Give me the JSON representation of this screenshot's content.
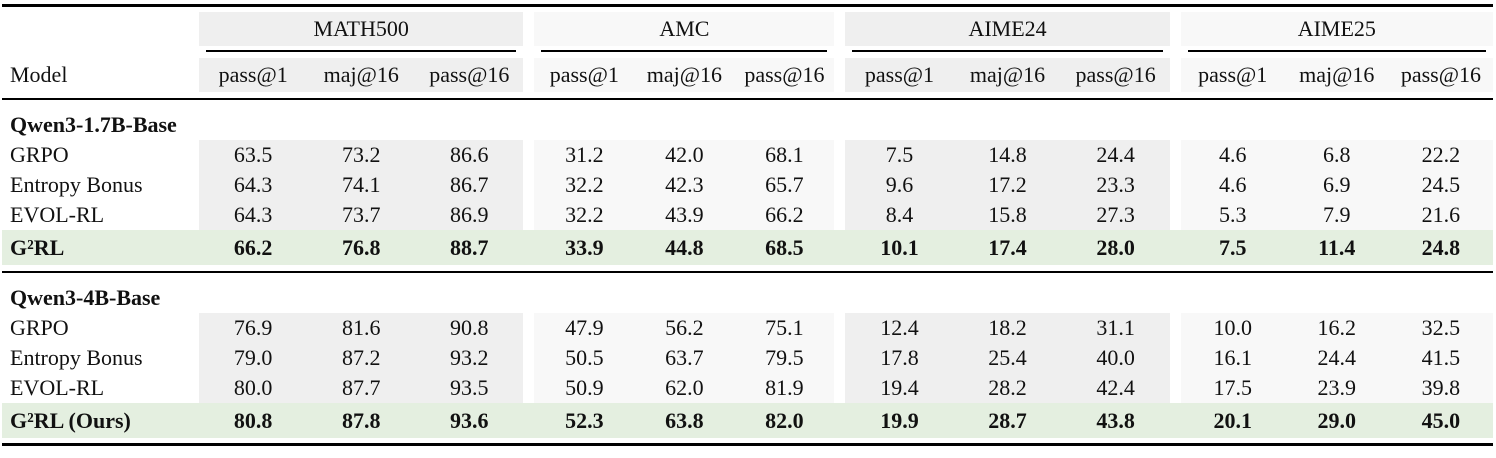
{
  "table": {
    "model_header": "Model",
    "groups": [
      {
        "name": "MATH500",
        "metrics": [
          "pass@1",
          "maj@16",
          "pass@16"
        ]
      },
      {
        "name": "AMC",
        "metrics": [
          "pass@1",
          "maj@16",
          "pass@16"
        ]
      },
      {
        "name": "AIME24",
        "metrics": [
          "pass@1",
          "maj@16",
          "pass@16"
        ]
      },
      {
        "name": "AIME25",
        "metrics": [
          "pass@1",
          "maj@16",
          "pass@16"
        ]
      }
    ],
    "sections": [
      {
        "title": "Qwen3-1.7B-Base",
        "rows": [
          {
            "model": "GRPO",
            "highlight": false,
            "values": [
              "63.5",
              "73.2",
              "86.6",
              "31.2",
              "42.0",
              "68.1",
              "7.5",
              "14.8",
              "24.4",
              "4.6",
              "6.8",
              "22.2"
            ]
          },
          {
            "model": "Entropy Bonus",
            "highlight": false,
            "values": [
              "64.3",
              "74.1",
              "86.7",
              "32.2",
              "42.3",
              "65.7",
              "9.6",
              "17.2",
              "23.3",
              "4.6",
              "6.9",
              "24.5"
            ]
          },
          {
            "model": "EVOL-RL",
            "highlight": false,
            "values": [
              "64.3",
              "73.7",
              "86.9",
              "32.2",
              "43.9",
              "66.2",
              "8.4",
              "15.8",
              "27.3",
              "5.3",
              "7.9",
              "21.6"
            ]
          },
          {
            "model": "G²RL",
            "highlight": true,
            "values": [
              "66.2",
              "76.8",
              "88.7",
              "33.9",
              "44.8",
              "68.5",
              "10.1",
              "17.4",
              "28.0",
              "7.5",
              "11.4",
              "24.8"
            ]
          }
        ]
      },
      {
        "title": "Qwen3-4B-Base",
        "rows": [
          {
            "model": "GRPO",
            "highlight": false,
            "values": [
              "76.9",
              "81.6",
              "90.8",
              "47.9",
              "56.2",
              "75.1",
              "12.4",
              "18.2",
              "31.1",
              "10.0",
              "16.2",
              "32.5"
            ]
          },
          {
            "model": "Entropy Bonus",
            "highlight": false,
            "values": [
              "79.0",
              "87.2",
              "93.2",
              "50.5",
              "63.7",
              "79.5",
              "17.8",
              "25.4",
              "40.0",
              "16.1",
              "24.4",
              "41.5"
            ]
          },
          {
            "model": "EVOL-RL",
            "highlight": false,
            "values": [
              "80.0",
              "87.7",
              "93.5",
              "50.9",
              "62.0",
              "81.9",
              "19.4",
              "28.2",
              "42.4",
              "17.5",
              "23.9",
              "39.8"
            ]
          },
          {
            "model": "G²RL (Ours)",
            "highlight": true,
            "values": [
              "80.8",
              "87.8",
              "93.6",
              "52.3",
              "63.8",
              "82.0",
              "19.9",
              "28.7",
              "43.8",
              "20.1",
              "29.0",
              "45.0"
            ]
          }
        ]
      }
    ],
    "colors": {
      "col_shade_dark": "#efefef",
      "col_shade_light": "#f8f8f8",
      "highlight_row": "#e4efe0",
      "rule": "#000000"
    }
  }
}
